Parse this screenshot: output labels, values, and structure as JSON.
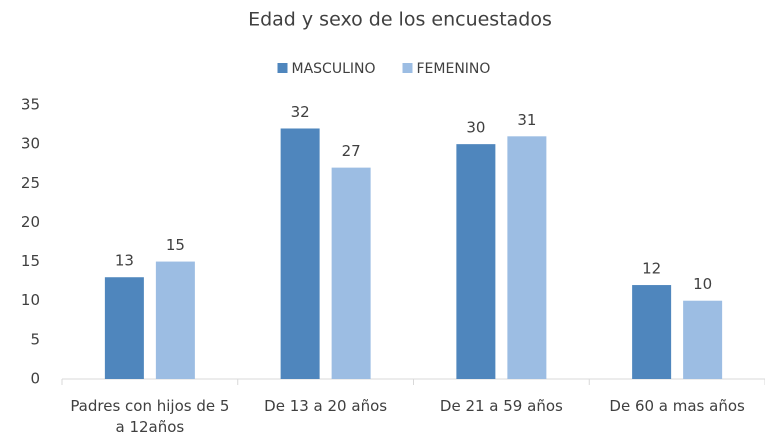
{
  "chart_data": {
    "type": "bar",
    "title": "Edad y sexo de los encuestados",
    "categories": [
      "Padres con hijos de 5 a 12años",
      "De 13 a 20 años",
      "De 21 a 59 años",
      "De 60 a mas años"
    ],
    "series": [
      {
        "name": "MASCULINO",
        "color": "#4f86bd",
        "values": [
          13,
          32,
          30,
          12
        ]
      },
      {
        "name": "FEMENINO",
        "color": "#9cbde3",
        "values": [
          15,
          27,
          31,
          10
        ]
      }
    ],
    "ylim": [
      0,
      35
    ],
    "yticks": [
      0,
      5,
      10,
      15,
      20,
      25,
      30,
      35
    ],
    "grid": false,
    "legend": "top"
  }
}
